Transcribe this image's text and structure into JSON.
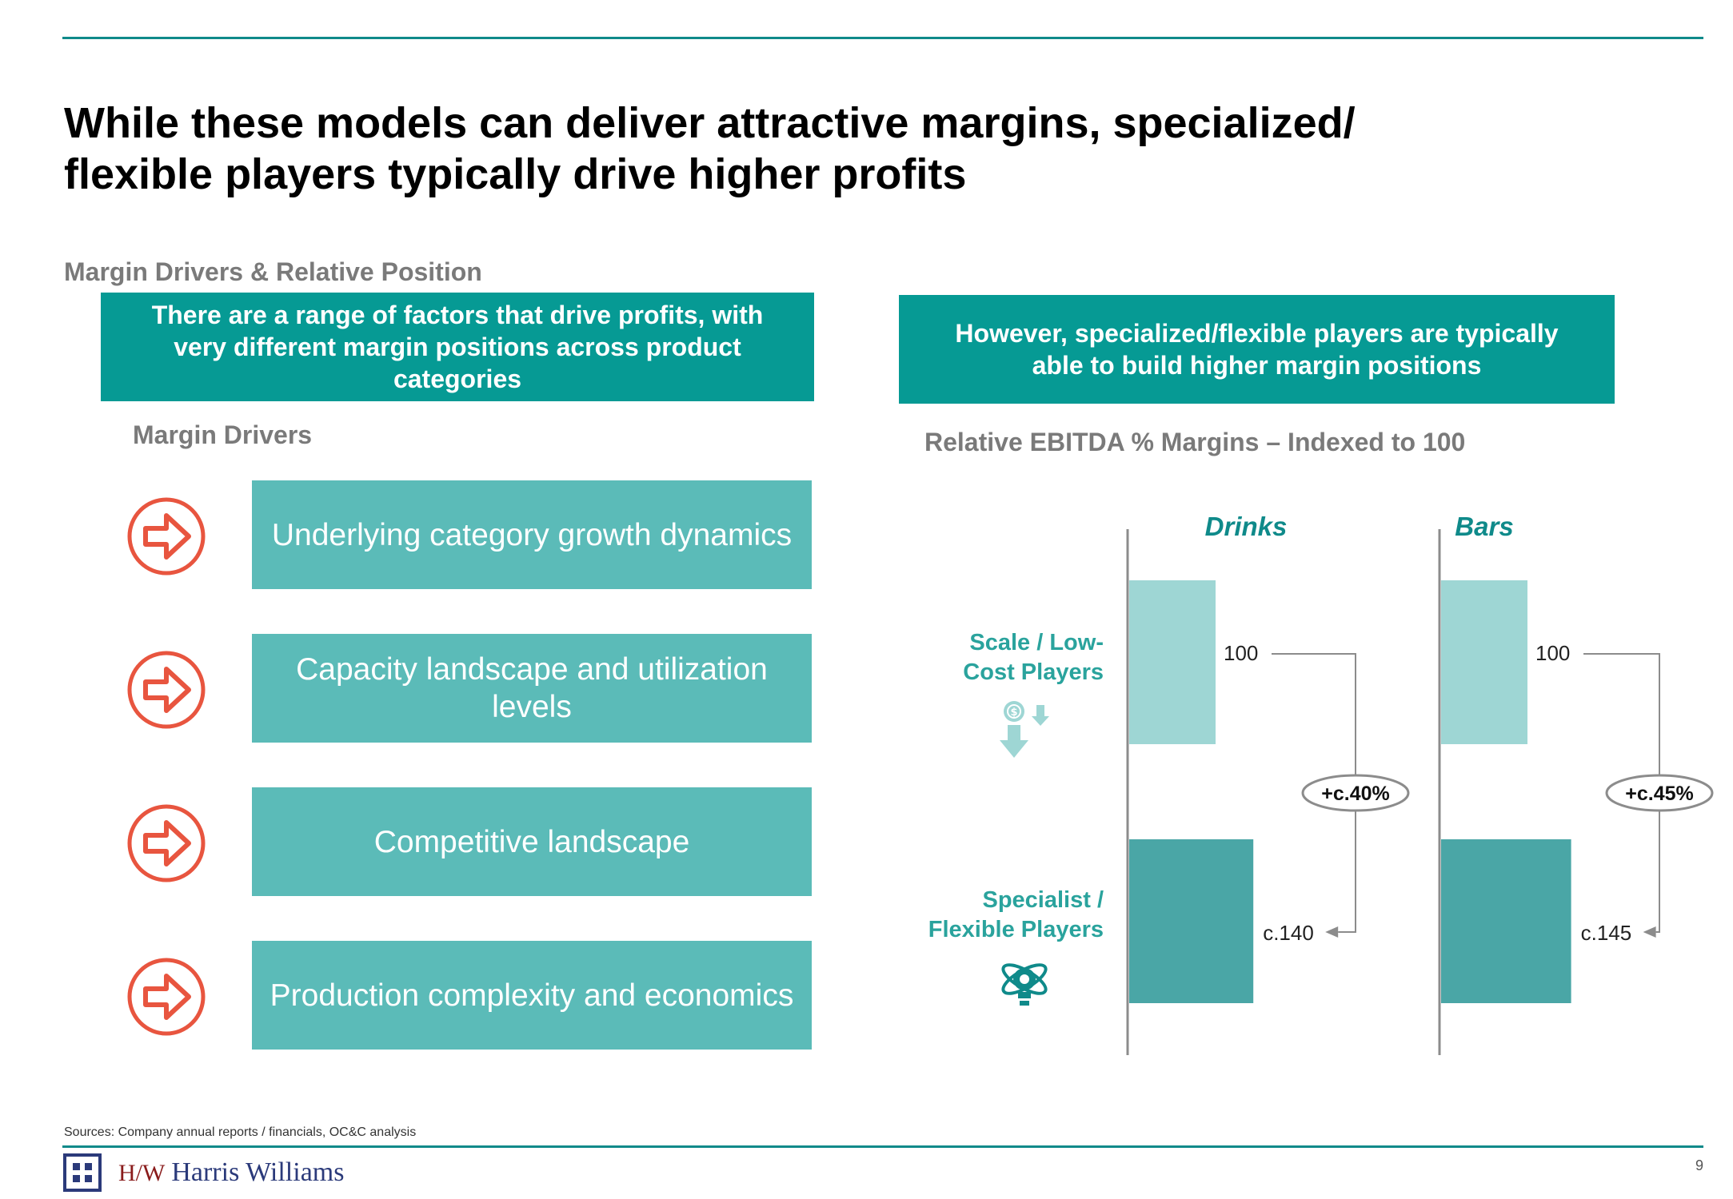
{
  "slide": {
    "title_line1": "While these models can deliver attractive margins, specialized/",
    "title_line2": "flexible players typically drive higher profits",
    "section_label": "Margin Drivers & Relative Position",
    "page_number": "9",
    "sources": "Sources: Company annual reports / financials, OC&C analysis",
    "logo": {
      "monogram": "H/W",
      "name": "Harris Williams"
    },
    "colors": {
      "teal_dark": "#069a94",
      "teal_mid": "#5bbbb8",
      "teal_light": "#9ed6d4",
      "bar_dark": "#4aa6a6",
      "arrow_red": "#e8553f"
    }
  },
  "left": {
    "banner": "There are a range of factors that drive profits, with very different margin positions across product categories",
    "sub_label": "Margin Drivers",
    "drivers": [
      {
        "label": "Underlying category growth dynamics",
        "icon": "arrow-right-circle-icon"
      },
      {
        "label": "Capacity landscape and utilization levels",
        "icon": "arrow-right-circle-icon"
      },
      {
        "label": "Competitive landscape",
        "icon": "arrow-right-circle-icon"
      },
      {
        "label": "Production complexity and economics",
        "icon": "arrow-right-circle-icon"
      }
    ]
  },
  "right": {
    "banner": "However, specialized/flexible players are typically able to build higher margin positions",
    "sub_label": "Relative EBITDA % Margins – Indexed to 100",
    "row_labels": {
      "scale": "Scale / Low-Cost Players",
      "specialist": "Specialist / Flexible Players"
    },
    "row_icons": {
      "scale": "cost-down-icon",
      "specialist": "innovation-bulb-icon"
    }
  },
  "chart_data": [
    {
      "type": "bar",
      "title": "Drinks",
      "categories": [
        "Scale / Low-Cost Players",
        "Specialist / Flexible Players"
      ],
      "values": [
        100,
        140
      ],
      "data_labels": [
        "100",
        "c.140"
      ],
      "uplift_label": "+c.40%",
      "ylabel": "Relative EBITDA % Margins – Indexed to 100"
    },
    {
      "type": "bar",
      "title": "Bars",
      "categories": [
        "Scale / Low-Cost Players",
        "Specialist / Flexible Players"
      ],
      "values": [
        100,
        145
      ],
      "data_labels": [
        "100",
        "c.145"
      ],
      "uplift_label": "+c.45%",
      "ylabel": "Relative EBITDA % Margins – Indexed to 100"
    }
  ]
}
